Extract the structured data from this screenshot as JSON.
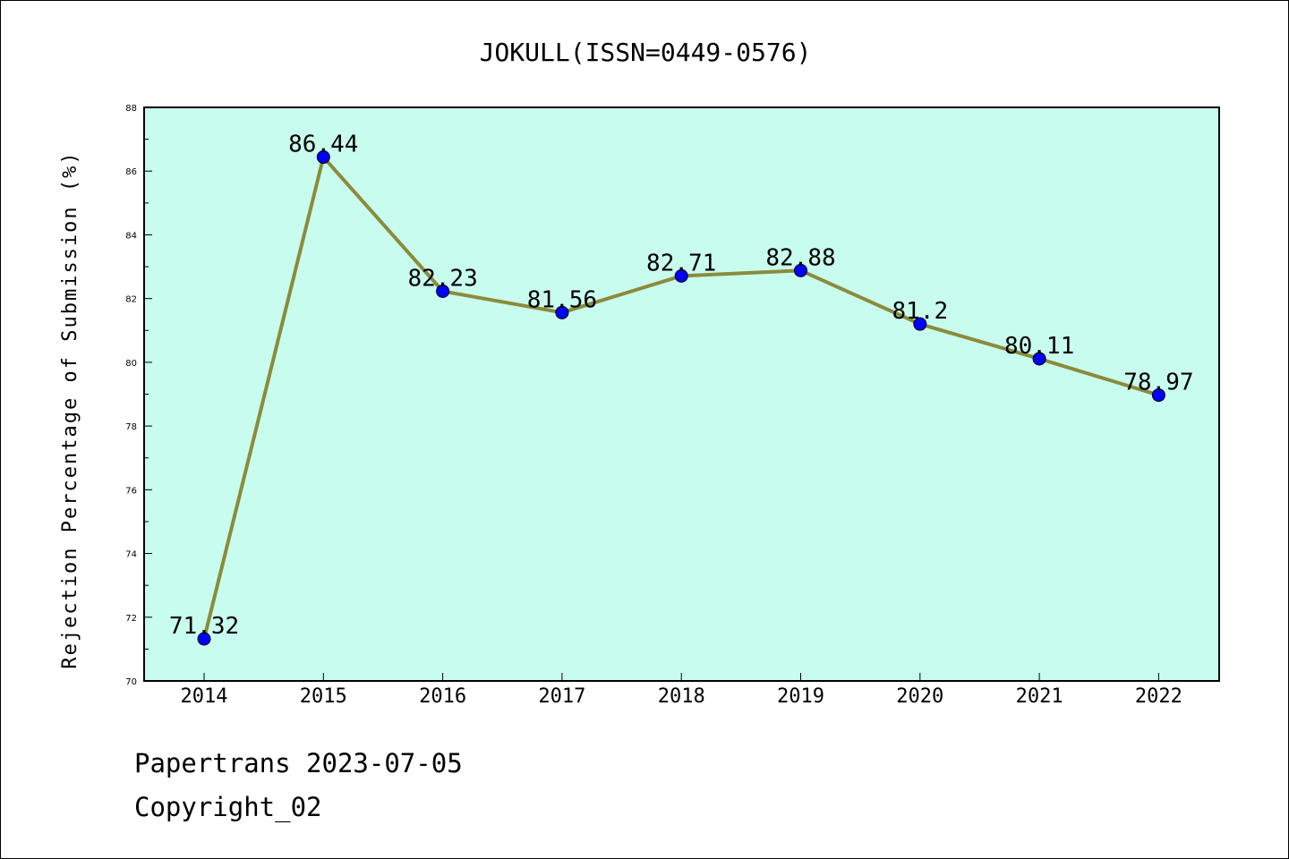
{
  "chart_data": {
    "type": "line",
    "title": "JOKULL(ISSN=0449-0576)",
    "xlabel": "",
    "ylabel": "Rejection Percentage of Submission (%)",
    "categories": [
      "2014",
      "2015",
      "2016",
      "2017",
      "2018",
      "2019",
      "2020",
      "2021",
      "2022"
    ],
    "series": [
      {
        "values": [
          71.32,
          86.44,
          82.23,
          81.56,
          82.71,
          82.88,
          81.2,
          80.11,
          78.97
        ],
        "labels": [
          "71.32",
          "86.44",
          "82.23",
          "81.56",
          "82.71",
          "82.88",
          "81.2",
          "80.11",
          "78.97"
        ]
      }
    ],
    "ylim": [
      70,
      88
    ],
    "yticks": [
      "70",
      "72",
      "74",
      "76",
      "78",
      "80",
      "82",
      "84",
      "86",
      "88"
    ],
    "grid": false,
    "colors": {
      "plot_background": "#c8fcee",
      "line": "#8b8b3a",
      "marker": "#0000ff"
    }
  },
  "footer": {
    "line1": "Papertrans 2023-07-05",
    "line2": "Copyright_02"
  }
}
